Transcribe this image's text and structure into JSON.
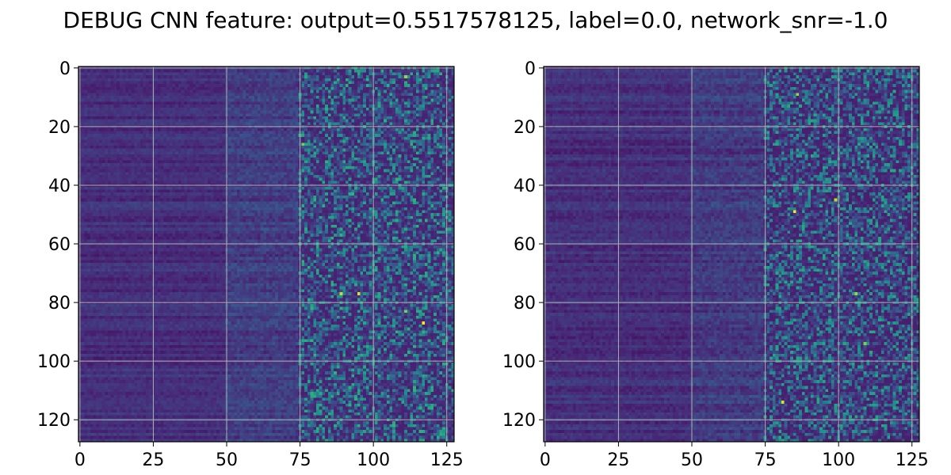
{
  "figure": {
    "suptitle": "DEBUG CNN feature: output=0.5517578125, label=0.0, network_snr=-1.0"
  },
  "colors": {
    "background": "#ffffff",
    "grid": "#b0b0b0",
    "colormap": "viridis"
  },
  "chart_data": [
    {
      "type": "heatmap",
      "title": "",
      "xlabel": "",
      "ylabel": "",
      "rows": 128,
      "cols": 128,
      "xlim": [
        -0.5,
        127.5
      ],
      "ylim": [
        127.5,
        -0.5
      ],
      "y_inverted": true,
      "xticks": [
        0,
        25,
        50,
        75,
        100,
        125
      ],
      "yticks": [
        0,
        20,
        40,
        60,
        80,
        100,
        120
      ],
      "grid": true,
      "colormap": "viridis",
      "value_range": [
        0.0,
        1.0
      ],
      "column_profile": [
        {
          "col_range": [
            0,
            49
          ],
          "mean": 0.13,
          "spread": 0.07
        },
        {
          "col_range": [
            50,
            74
          ],
          "mean": 0.18,
          "spread": 0.12
        },
        {
          "col_range": [
            75,
            127
          ],
          "mean": 0.28,
          "spread": 0.38
        }
      ],
      "peak_cells": [
        {
          "row": 87,
          "col": 117,
          "value": 1.0
        },
        {
          "row": 77,
          "col": 95,
          "value": 0.95
        },
        {
          "row": 77,
          "col": 89,
          "value": 0.9
        },
        {
          "row": 3,
          "col": 111,
          "value": 0.85
        },
        {
          "row": 26,
          "col": 76,
          "value": 0.8
        },
        {
          "row": 83,
          "col": 111,
          "value": 0.8
        }
      ]
    },
    {
      "type": "heatmap",
      "title": "",
      "xlabel": "",
      "ylabel": "",
      "rows": 128,
      "cols": 128,
      "xlim": [
        -0.5,
        127.5
      ],
      "ylim": [
        127.5,
        -0.5
      ],
      "y_inverted": true,
      "xticks": [
        0,
        25,
        50,
        75,
        100,
        125
      ],
      "yticks": [
        0,
        20,
        40,
        60,
        80,
        100,
        120
      ],
      "grid": true,
      "colormap": "viridis",
      "value_range": [
        0.0,
        1.0
      ],
      "column_profile": [
        {
          "col_range": [
            0,
            49
          ],
          "mean": 0.13,
          "spread": 0.08
        },
        {
          "col_range": [
            50,
            74
          ],
          "mean": 0.17,
          "spread": 0.12
        },
        {
          "col_range": [
            75,
            127
          ],
          "mean": 0.26,
          "spread": 0.36
        }
      ],
      "peak_cells": [
        {
          "row": 49,
          "col": 85,
          "value": 1.0
        },
        {
          "row": 114,
          "col": 81,
          "value": 0.95
        },
        {
          "row": 45,
          "col": 99,
          "value": 0.9
        },
        {
          "row": 9,
          "col": 86,
          "value": 0.85
        },
        {
          "row": 77,
          "col": 106,
          "value": 0.85
        },
        {
          "row": 94,
          "col": 109,
          "value": 0.8
        }
      ]
    }
  ]
}
